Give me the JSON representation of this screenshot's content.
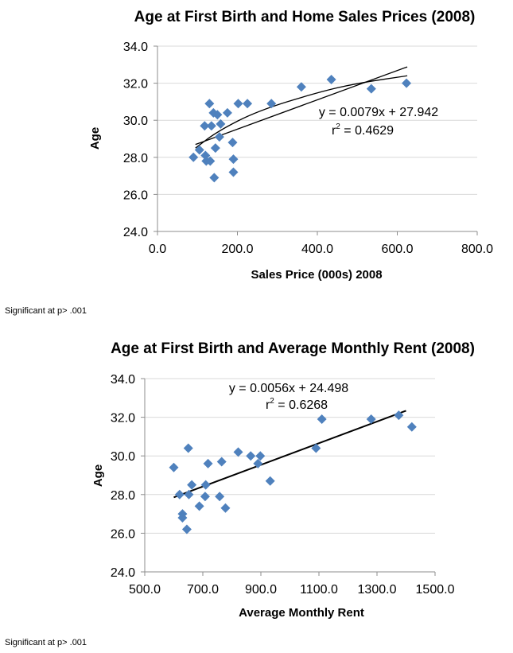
{
  "chart_data": [
    {
      "type": "scatter",
      "title": "Age at First Birth and Home Sales Prices (2008)",
      "xlabel": "Sales Price (000s) 2008",
      "ylabel": "Age",
      "xlim": [
        0,
        800
      ],
      "ylim": [
        24,
        34
      ],
      "x_ticks": [
        "0.0",
        "200.0",
        "400.0",
        "600.0",
        "800.0"
      ],
      "y_ticks": [
        "24.0",
        "26.0",
        "28.0",
        "30.0",
        "32.0",
        "34.0"
      ],
      "x_tick_values": [
        0,
        200,
        400,
        600,
        800
      ],
      "y_tick_values": [
        24,
        26,
        28,
        30,
        32,
        34
      ],
      "grid": "horizontal",
      "points": [
        {
          "x": 90,
          "y": 28.0
        },
        {
          "x": 105,
          "y": 28.4
        },
        {
          "x": 118,
          "y": 29.7
        },
        {
          "x": 120,
          "y": 28.1
        },
        {
          "x": 122,
          "y": 27.8
        },
        {
          "x": 130,
          "y": 30.9
        },
        {
          "x": 132,
          "y": 27.8
        },
        {
          "x": 135,
          "y": 29.7
        },
        {
          "x": 140,
          "y": 30.4
        },
        {
          "x": 142,
          "y": 26.9
        },
        {
          "x": 145,
          "y": 28.5
        },
        {
          "x": 150,
          "y": 30.3
        },
        {
          "x": 155,
          "y": 29.1
        },
        {
          "x": 158,
          "y": 29.8
        },
        {
          "x": 175,
          "y": 30.4
        },
        {
          "x": 188,
          "y": 28.8
        },
        {
          "x": 190,
          "y": 27.9
        },
        {
          "x": 190,
          "y": 27.2
        },
        {
          "x": 202,
          "y": 30.9
        },
        {
          "x": 225,
          "y": 30.9
        },
        {
          "x": 285,
          "y": 30.9
        },
        {
          "x": 360,
          "y": 31.8
        },
        {
          "x": 435,
          "y": 32.2
        },
        {
          "x": 535,
          "y": 31.7
        },
        {
          "x": 623,
          "y": 32.0
        }
      ],
      "trendline": {
        "type": "linear",
        "slope": 0.0079,
        "intercept": 27.942,
        "x_range": [
          95,
          625
        ]
      },
      "trendline2": {
        "type": "curve",
        "points": [
          [
            95,
            28.5
          ],
          [
            150,
            29.4
          ],
          [
            250,
            30.5
          ],
          [
            400,
            31.5
          ],
          [
            500,
            32.0
          ],
          [
            625,
            32.4
          ]
        ]
      },
      "equation": "y = 0.0079x + 27.942",
      "r2_prefix": "r",
      "r2_sup": "2",
      "r2_value": " = 0.4629",
      "note": "Significant at p> .001"
    },
    {
      "type": "scatter",
      "title": "Age at First Birth and Average Monthly Rent (2008)",
      "xlabel": "Average Monthly Rent",
      "ylabel": "Age",
      "xlim": [
        500,
        1500
      ],
      "ylim": [
        24,
        34
      ],
      "x_ticks": [
        "500.0",
        "700.0",
        "900.0",
        "1100.0",
        "1300.0",
        "1500.0"
      ],
      "y_ticks": [
        "24.0",
        "26.0",
        "28.0",
        "30.0",
        "32.0",
        "34.0"
      ],
      "x_tick_values": [
        500,
        700,
        900,
        1100,
        1300,
        1500
      ],
      "y_tick_values": [
        24,
        26,
        28,
        30,
        32,
        34
      ],
      "grid": "horizontal",
      "points": [
        {
          "x": 600,
          "y": 29.4
        },
        {
          "x": 620,
          "y": 28.0
        },
        {
          "x": 630,
          "y": 27.0
        },
        {
          "x": 630,
          "y": 26.8
        },
        {
          "x": 645,
          "y": 26.2
        },
        {
          "x": 650,
          "y": 30.4
        },
        {
          "x": 652,
          "y": 28.0
        },
        {
          "x": 662,
          "y": 28.5
        },
        {
          "x": 688,
          "y": 27.4
        },
        {
          "x": 708,
          "y": 27.9
        },
        {
          "x": 710,
          "y": 28.5
        },
        {
          "x": 718,
          "y": 29.6
        },
        {
          "x": 758,
          "y": 27.9
        },
        {
          "x": 765,
          "y": 29.7
        },
        {
          "x": 778,
          "y": 27.3
        },
        {
          "x": 822,
          "y": 30.2
        },
        {
          "x": 865,
          "y": 30.0
        },
        {
          "x": 890,
          "y": 29.6
        },
        {
          "x": 898,
          "y": 30.0
        },
        {
          "x": 932,
          "y": 28.7
        },
        {
          "x": 1090,
          "y": 30.4
        },
        {
          "x": 1110,
          "y": 31.9
        },
        {
          "x": 1280,
          "y": 31.9
        },
        {
          "x": 1375,
          "y": 32.1
        },
        {
          "x": 1420,
          "y": 31.5
        }
      ],
      "trendline": {
        "type": "linear",
        "slope": 0.0056,
        "intercept": 24.498,
        "x_range": [
          600,
          1400
        ]
      },
      "equation": "y = 0.0056x + 24.498",
      "r2_prefix": "r",
      "r2_sup": "2",
      "r2_value": " = 0.6268",
      "note": "Significant at p> .001"
    }
  ],
  "colors": {
    "marker": "#4f81bd",
    "grid": "#d9d9d9",
    "axis": "#8c8c8c",
    "trend": "#000000"
  }
}
